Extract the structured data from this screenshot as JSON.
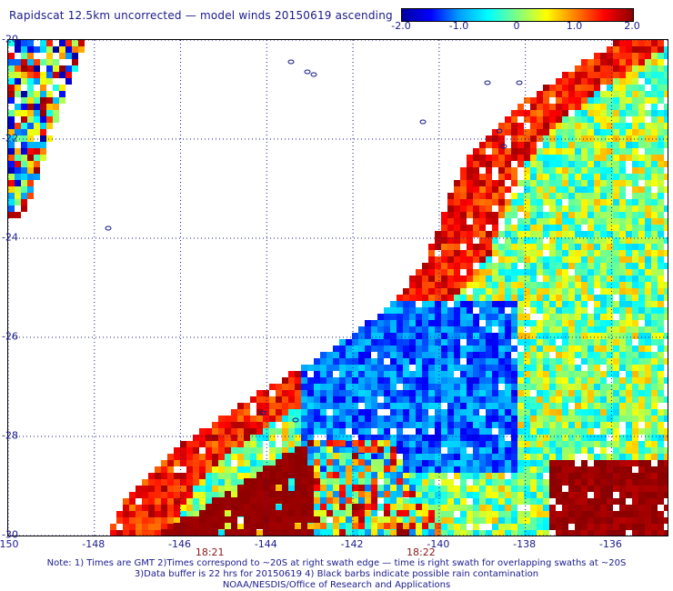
{
  "title": "Rapidscat 12.5km uncorrected — model winds 20150619 ascending",
  "colorbar": {
    "labels": [
      "-2.0",
      "-1.0",
      "0",
      "1.0",
      "2.0"
    ],
    "stops": [
      "#0000a0",
      "#0000ff",
      "#00a0ff",
      "#00ffff",
      "#80ff80",
      "#ffff00",
      "#ff8000",
      "#ff0000",
      "#8b0000"
    ]
  },
  "axes": {
    "lat_labels": [
      "-20",
      "-22",
      "-24",
      "-26",
      "-28",
      "-30"
    ],
    "lon_labels": [
      "-150",
      "-148",
      "-146",
      "-144",
      "-142",
      "-140",
      "-138",
      "-136"
    ],
    "lat_range": [
      -30,
      -20
    ],
    "lon_range": [
      -150,
      -134.7
    ]
  },
  "times": [
    {
      "label": "18:21",
      "lon": -145.3
    },
    {
      "label": "18:22",
      "lon": -140.4
    }
  ],
  "notes": [
    "Note: 1) Times are GMT 2)Times correspond to ~20S at right swath edge — time is right swath for overlapping swaths at ~20S",
    "3)Data buffer is 22 hrs for 20150619 4) Black barbs indicate possible rain contamination",
    "NOAA/NESDIS/Office of Research and Applications"
  ]
}
